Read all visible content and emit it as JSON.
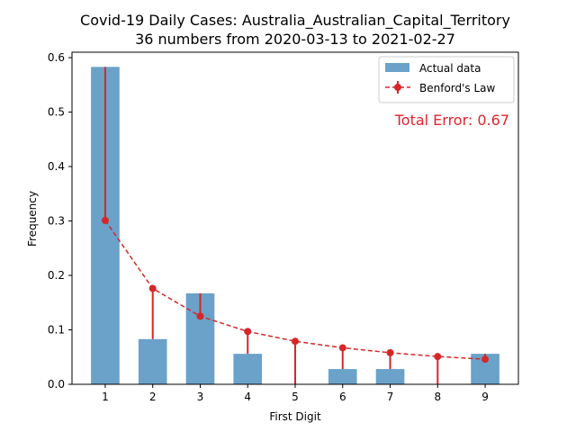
{
  "chart_data": {
    "type": "bar",
    "title": "Covid-19 Daily Cases: Australia_Australian_Capital_Territory",
    "subtitle": "36 numbers from 2020-03-13 to 2021-02-27",
    "xlabel": "First Digit",
    "ylabel": "Frequency",
    "ylim": [
      0,
      0.61
    ],
    "xlim": [
      0.3,
      9.7
    ],
    "yticks": [
      "0.0",
      "0.1",
      "0.2",
      "0.3",
      "0.4",
      "0.5",
      "0.6"
    ],
    "categories": [
      "1",
      "2",
      "3",
      "4",
      "5",
      "6",
      "7",
      "8",
      "9"
    ],
    "series": [
      {
        "name": "Actual data",
        "type": "bar",
        "color": "#6aa2c9",
        "values": [
          0.583,
          0.083,
          0.167,
          0.056,
          0.0,
          0.028,
          0.028,
          0.0,
          0.056
        ]
      },
      {
        "name": "Benford's Law",
        "type": "line",
        "style": "dashed",
        "marker": "circle",
        "color": "#d62728",
        "values": [
          0.301,
          0.176,
          0.125,
          0.097,
          0.079,
          0.067,
          0.058,
          0.051,
          0.046
        ]
      }
    ],
    "annotation": "Total Error: 0.67",
    "annotation_color": "#e3232b",
    "legend_position": "top-right",
    "grid": false
  }
}
